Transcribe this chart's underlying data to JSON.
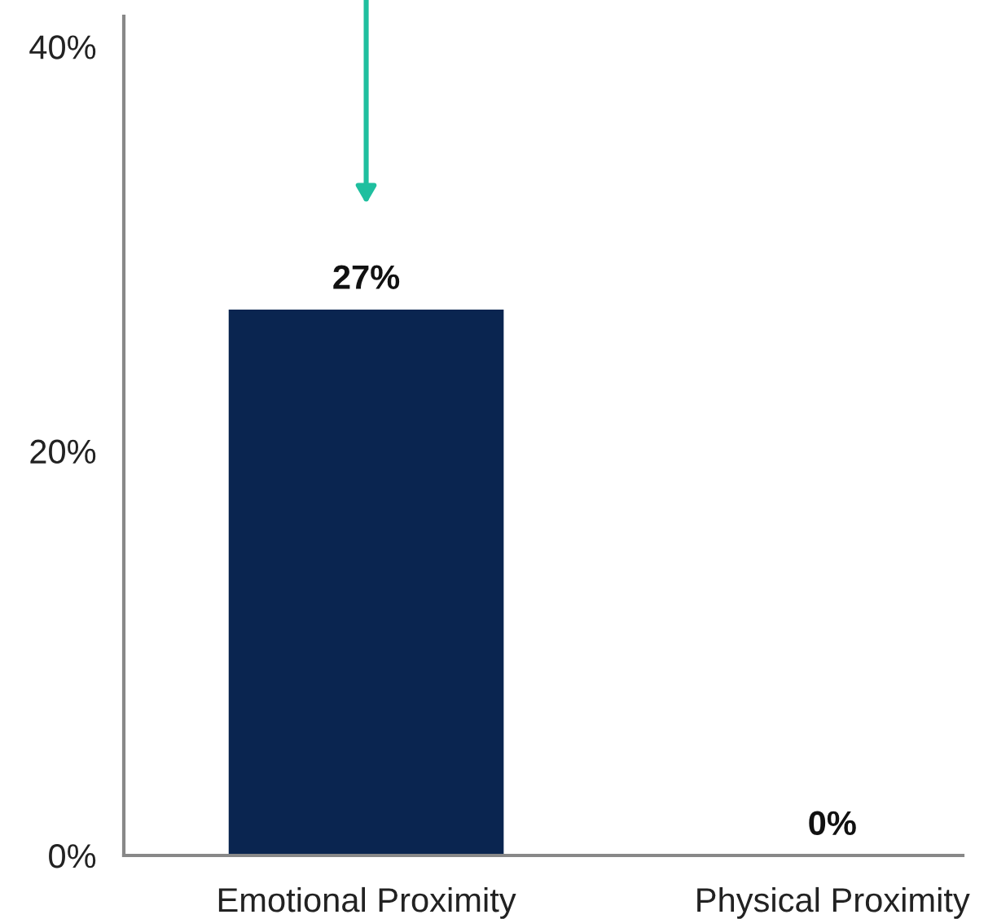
{
  "chart_data": {
    "type": "bar",
    "categories": [
      "Emotional Proximity",
      "Physical Proximity"
    ],
    "values": [
      27,
      0
    ],
    "value_labels": [
      "27%",
      "0%"
    ],
    "color": "#0a2550",
    "ylim": [
      0,
      41.5
    ],
    "yticks": [
      {
        "value": 0,
        "label": "0%"
      },
      {
        "value": 20,
        "label": "20%"
      },
      {
        "value": 40,
        "label": "40%"
      }
    ],
    "grid": false,
    "legend": false
  }
}
